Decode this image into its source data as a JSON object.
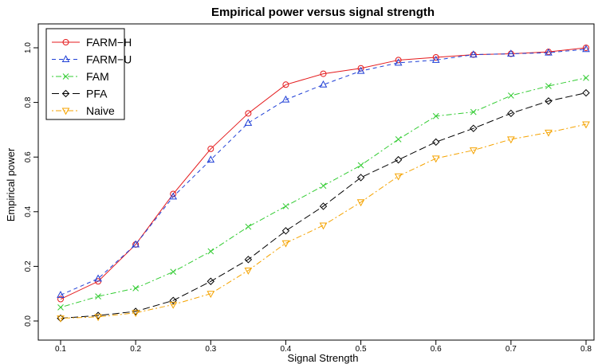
{
  "chart_data": {
    "type": "line",
    "title": "Empirical power versus signal strength",
    "xlabel": "Signal Strength",
    "ylabel": "Empirical power",
    "xlim": [
      0.1,
      0.8
    ],
    "ylim": [
      0.0,
      1.0
    ],
    "x_ticks": [
      "0.1",
      "0.2",
      "0.3",
      "0.4",
      "0.5",
      "0.6",
      "0.7",
      "0.8"
    ],
    "y_ticks": [
      "0.0",
      "0.2",
      "0.4",
      "0.6",
      "0.8",
      "1.0"
    ],
    "legend_position": "top-left",
    "grid": false,
    "x": [
      0.1,
      0.15,
      0.2,
      0.25,
      0.3,
      0.35,
      0.4,
      0.45,
      0.5,
      0.55,
      0.6,
      0.65,
      0.7,
      0.75,
      0.8
    ],
    "series": [
      {
        "name": "FARM−H",
        "color": "#e41a1c",
        "marker": "circle",
        "dash": "solid",
        "values": [
          0.08,
          0.145,
          0.28,
          0.465,
          0.63,
          0.76,
          0.865,
          0.905,
          0.925,
          0.955,
          0.965,
          0.975,
          0.978,
          0.985,
          1.0
        ]
      },
      {
        "name": "FARM−U",
        "color": "#1f3fd6",
        "marker": "triangle-up",
        "dash": "dashed",
        "values": [
          0.095,
          0.155,
          0.28,
          0.455,
          0.59,
          0.725,
          0.81,
          0.865,
          0.915,
          0.945,
          0.955,
          0.975,
          0.978,
          0.982,
          0.995
        ]
      },
      {
        "name": "FAM",
        "color": "#33cc33",
        "marker": "cross",
        "dash": "dotdash",
        "values": [
          0.05,
          0.09,
          0.12,
          0.18,
          0.255,
          0.345,
          0.42,
          0.495,
          0.57,
          0.665,
          0.75,
          0.765,
          0.825,
          0.86,
          0.89
        ]
      },
      {
        "name": "PFA",
        "color": "#000000",
        "marker": "diamond",
        "dash": "longdash",
        "values": [
          0.01,
          0.02,
          0.035,
          0.075,
          0.145,
          0.225,
          0.33,
          0.42,
          0.525,
          0.59,
          0.655,
          0.705,
          0.76,
          0.805,
          0.835
        ]
      },
      {
        "name": "Naive",
        "color": "#f5a300",
        "marker": "triangle-down",
        "dash": "dotdash",
        "values": [
          0.01,
          0.015,
          0.03,
          0.06,
          0.1,
          0.185,
          0.285,
          0.35,
          0.435,
          0.53,
          0.595,
          0.625,
          0.665,
          0.69,
          0.72
        ]
      }
    ]
  }
}
